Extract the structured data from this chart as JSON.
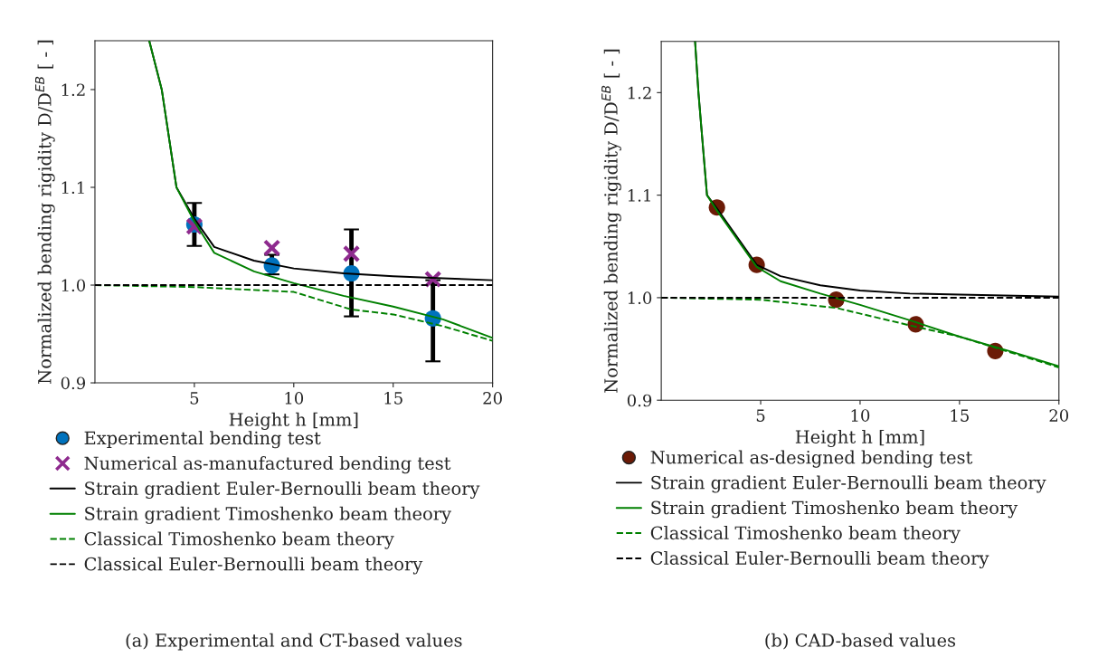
{
  "chart_data": [
    {
      "type": "line",
      "xlabel": "Height h [mm]",
      "ylabel": "Normalized bending rigidity D/D$^{EB}$ [ - ]",
      "xlim": [
        0,
        20
      ],
      "ylim": [
        0.9,
        1.25
      ],
      "xticks": [
        5,
        10,
        15,
        20
      ],
      "yticks": [
        0.9,
        {
          "value": 1.0,
          "label": "1.0"
        },
        1.1,
        1.2
      ],
      "grid": false,
      "legend": "bottom",
      "annotations": [
        "(a) Experimental and CT-based values"
      ],
      "series": [
        {
          "type": "scatter",
          "name": "Experimental bending test",
          "color": "#0072bd",
          "marker": "circle",
          "x": [
            5,
            8.9,
            12.9,
            17
          ],
          "values": [
            1.062,
            1.02,
            1.012,
            0.966
          ],
          "errors": [
            [
              1.04,
              1.084
            ],
            [
              1.011,
              1.031
            ],
            [
              0.968,
              1.057
            ],
            [
              0.922,
              1.005
            ]
          ]
        },
        {
          "type": "scatter",
          "name": "Numerical as-manufactured bending test",
          "color": "#8e2a8e",
          "marker": "cross",
          "x": [
            5,
            8.9,
            12.9,
            17
          ],
          "values": [
            1.06,
            1.038,
            1.032,
            1.006
          ]
        },
        {
          "type": "line",
          "name": "Strain gradient Euler-Bernoulli beam theory",
          "color": "#000000",
          "line_style": "solid",
          "x": [
            2.73,
            3.36,
            4.1,
            5,
            6,
            8,
            10,
            12.5,
            15,
            17.5,
            20
          ],
          "values": [
            1.25,
            1.2,
            1.1,
            1.068,
            1.039,
            1.025,
            1.017,
            1.012,
            1.009,
            1.007,
            1.005
          ]
        },
        {
          "type": "line",
          "name": "Strain gradient Timoshenko beam theory",
          "color": "#008000",
          "line_style": "solid",
          "x": [
            2.73,
            3.36,
            4.1,
            5,
            6,
            8,
            10,
            12.5,
            15,
            17.5,
            20
          ],
          "values": [
            1.25,
            1.2,
            1.1,
            1.065,
            1.033,
            1.014,
            1.002,
            0.989,
            0.978,
            0.965,
            0.946
          ]
        },
        {
          "type": "line",
          "name": "Classical Timoshenko beam theory",
          "color": "#008000",
          "line_style": "dashed",
          "x": [
            0,
            5,
            10,
            12.9,
            15,
            17.5,
            20
          ],
          "values": [
            1.0,
            0.998,
            0.993,
            0.975,
            0.97,
            0.958,
            0.943
          ]
        },
        {
          "type": "line",
          "name": "Classical Euler-Bernoulli beam theory",
          "color": "#000000",
          "line_style": "dashed",
          "x": [
            0,
            20
          ],
          "values": [
            1.0,
            1.0
          ]
        }
      ]
    },
    {
      "type": "line",
      "xlabel": "Height h [mm]",
      "ylabel": "Normalized bending rigidity D/D$^{EB}$ [ - ]",
      "xlim": [
        0,
        20
      ],
      "ylim": [
        0.9,
        1.25
      ],
      "xticks": [
        5,
        10,
        15,
        20
      ],
      "yticks": [
        0.9,
        {
          "value": 1.0,
          "label": "1.0"
        },
        1.1,
        1.2
      ],
      "grid": false,
      "legend": "bottom",
      "annotations": [
        "(b) CAD-based values"
      ],
      "series": [
        {
          "type": "scatter",
          "name": "Numerical as-designed bending test",
          "color": "#6b1a06",
          "marker": "circle",
          "x": [
            2.8,
            4.8,
            8.8,
            12.8,
            16.8
          ],
          "values": [
            1.088,
            1.032,
            0.998,
            0.974,
            0.948
          ]
        },
        {
          "type": "line",
          "name": "Strain gradient Euler-Bernoulli beam theory",
          "color": "#000000",
          "line_style": "solid",
          "x": [
            1.7,
            1.87,
            2.3,
            2.8,
            4.8,
            6,
            8,
            10,
            12.5,
            15,
            20
          ],
          "values": [
            1.25,
            1.2,
            1.1,
            1.087,
            1.032,
            1.021,
            1.012,
            1.007,
            1.004,
            1.003,
            1.001
          ]
        },
        {
          "type": "line",
          "name": "Strain gradient Timoshenko beam theory",
          "color": "#008000",
          "line_style": "solid",
          "x": [
            1.7,
            1.87,
            2.3,
            2.8,
            4.8,
            6,
            8,
            10,
            12.5,
            15,
            17.5,
            20
          ],
          "values": [
            1.25,
            1.2,
            1.1,
            1.085,
            1.03,
            1.016,
            1.004,
            0.993,
            0.978,
            0.962,
            0.948,
            0.933
          ]
        },
        {
          "type": "line",
          "name": "Classical Timoshenko beam theory",
          "color": "#008000",
          "line_style": "dashed",
          "x": [
            0,
            2.5,
            5,
            8.8,
            12.5,
            15,
            17.5,
            20
          ],
          "values": [
            1.0,
            0.999,
            0.998,
            0.99,
            0.973,
            0.962,
            0.947,
            0.932
          ]
        },
        {
          "type": "line",
          "name": "Classical Euler-Bernoulli beam theory",
          "color": "#000000",
          "line_style": "dashed",
          "x": [
            0,
            20
          ],
          "values": [
            1.0,
            1.0
          ]
        }
      ]
    }
  ]
}
